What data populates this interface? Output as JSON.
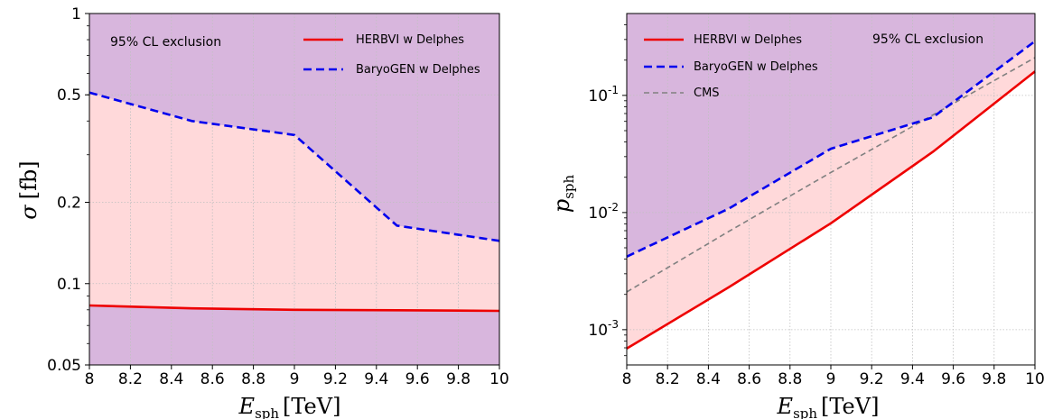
{
  "colors": {
    "excluded_fill": "#d8b6dd",
    "band_fill": "#ffd9da",
    "herbvi": "#ee0000",
    "baryogen": "#0000ee",
    "cms": "#808080",
    "grid": "#c0c0c0"
  },
  "chart_data": [
    {
      "type": "line",
      "title": "",
      "annotation": "95% CL exclusion",
      "xlabel": {
        "main": "E",
        "sub": "sph",
        "unit": "[TeV]"
      },
      "ylabel": {
        "main": "σ",
        "unit": "[fb]"
      },
      "xlim": [
        8,
        10
      ],
      "ylim": [
        0.05,
        1
      ],
      "yscale": "log",
      "grid": true,
      "legend_position": "top-right",
      "x_ticks": [
        "8",
        "8.2",
        "8.4",
        "8.6",
        "8.8",
        "9",
        "9.2",
        "9.4",
        "9.6",
        "9.8",
        "10"
      ],
      "y_ticks": [
        {
          "value": 0.05,
          "label": "0.05"
        },
        {
          "value": 0.1,
          "label": "0.1"
        },
        {
          "value": 0.2,
          "label": "0.2"
        },
        {
          "value": 0.5,
          "label": "0.5"
        },
        {
          "value": 1,
          "label": "1"
        }
      ],
      "series": [
        {
          "name": "HERBVI w Delphes",
          "style": "solid",
          "color": "#ee0000",
          "x": [
            8,
            8.5,
            9,
            9.5,
            10
          ],
          "y": [
            0.083,
            0.081,
            0.08,
            0.0797,
            0.0793
          ]
        },
        {
          "name": "BaryoGEN w Delphes",
          "style": "dashed",
          "color": "#0000ee",
          "x": [
            8,
            8.5,
            9,
            9.5,
            10
          ],
          "y": [
            0.51,
            0.4,
            0.355,
            0.164,
            0.144
          ]
        }
      ]
    },
    {
      "type": "line",
      "title": "",
      "annotation": "95% CL exclusion",
      "xlabel": {
        "main": "E",
        "sub": "sph",
        "unit": "[TeV]"
      },
      "ylabel": {
        "main": "p",
        "sub": "sph",
        "unit": ""
      },
      "xlim": [
        8,
        10
      ],
      "ylim": [
        0.0005,
        0.5
      ],
      "yscale": "log",
      "grid": true,
      "legend_position": "top-left",
      "x_ticks": [
        "8",
        "8.2",
        "8.4",
        "8.6",
        "8.8",
        "9",
        "9.2",
        "9.4",
        "9.6",
        "9.8",
        "10"
      ],
      "y_ticks": [
        {
          "value": 0.001,
          "base": "10",
          "exp": "-3"
        },
        {
          "value": 0.01,
          "base": "10",
          "exp": "-2"
        },
        {
          "value": 0.1,
          "base": "10",
          "exp": "-1"
        }
      ],
      "series": [
        {
          "name": "HERBVI w Delphes",
          "style": "solid",
          "color": "#ee0000",
          "x": [
            8,
            8.5,
            9,
            9.5,
            10
          ],
          "y": [
            0.00069,
            0.0023,
            0.0081,
            0.033,
            0.16
          ]
        },
        {
          "name": "BaryoGEN w Delphes",
          "style": "dashed",
          "color": "#0000ee",
          "x": [
            8,
            8.5,
            9,
            9.5,
            10
          ],
          "y": [
            0.0042,
            0.0108,
            0.035,
            0.065,
            0.29
          ]
        },
        {
          "name": "CMS",
          "style": "dashed-thin",
          "color": "#808080",
          "x": [
            8,
            8.5,
            9,
            9.5,
            10
          ],
          "y": [
            0.0021,
            0.0069,
            0.022,
            0.068,
            0.21
          ]
        }
      ]
    }
  ]
}
